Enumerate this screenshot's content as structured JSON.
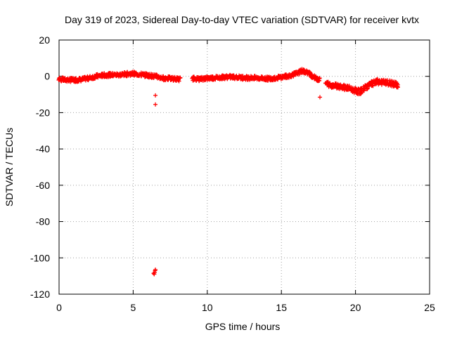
{
  "chart_data": {
    "type": "scatter",
    "title": "Day 319 of 2023, Sidereal Day-to-day VTEC variation (SDTVAR) for receiver kvtx",
    "xlabel": "GPS time / hours",
    "ylabel": "SDTVAR / TECUs",
    "xlim": [
      0,
      25
    ],
    "ylim": [
      -120,
      20
    ],
    "x_ticks": [
      0,
      5,
      10,
      15,
      20,
      25
    ],
    "y_ticks": [
      -120,
      -100,
      -80,
      -60,
      -40,
      -20,
      0,
      20
    ],
    "grid": true,
    "marker": "plus",
    "color": "#ff0000",
    "series": [
      {
        "name": "SDTVAR",
        "trend": [
          [
            0.0,
            -1.5
          ],
          [
            0.5,
            -2.0
          ],
          [
            1.0,
            -2.0
          ],
          [
            1.5,
            -1.8
          ],
          [
            2.0,
            -1.0
          ],
          [
            2.5,
            0.0
          ],
          [
            3.0,
            0.6
          ],
          [
            3.5,
            0.8
          ],
          [
            4.0,
            0.8
          ],
          [
            4.5,
            1.2
          ],
          [
            5.0,
            1.5
          ],
          [
            5.5,
            1.0
          ],
          [
            6.0,
            0.5
          ],
          [
            6.5,
            0.0
          ],
          [
            7.0,
            -1.0
          ],
          [
            7.5,
            -1.2
          ],
          [
            8.0,
            -1.5
          ],
          [
            8.2,
            -1.7
          ]
        ],
        "trend2": [
          [
            9.0,
            -1.2
          ],
          [
            9.5,
            -1.5
          ],
          [
            10.0,
            -1.0
          ],
          [
            10.5,
            -0.8
          ],
          [
            11.0,
            -0.5
          ],
          [
            11.5,
            -0.3
          ],
          [
            12.0,
            -0.5
          ],
          [
            12.5,
            -0.8
          ],
          [
            13.0,
            -0.8
          ],
          [
            13.5,
            -1.0
          ],
          [
            14.0,
            -1.3
          ],
          [
            14.5,
            -1.0
          ],
          [
            15.0,
            -0.5
          ],
          [
            15.5,
            0.3
          ],
          [
            16.0,
            1.5
          ],
          [
            16.4,
            3.0
          ],
          [
            16.8,
            2.0
          ],
          [
            17.2,
            -0.5
          ],
          [
            17.6,
            -2.0
          ]
        ],
        "trend3": [
          [
            18.0,
            -4.0
          ],
          [
            18.5,
            -5.0
          ],
          [
            19.0,
            -5.5
          ],
          [
            19.5,
            -6.5
          ],
          [
            20.0,
            -8.0
          ],
          [
            20.3,
            -8.5
          ],
          [
            20.6,
            -6.5
          ],
          [
            21.0,
            -4.5
          ],
          [
            21.5,
            -3.0
          ],
          [
            22.0,
            -3.5
          ],
          [
            22.5,
            -4.0
          ],
          [
            22.9,
            -5.0
          ]
        ],
        "outliers": [
          [
            6.5,
            -10.5
          ],
          [
            6.5,
            -15.5
          ],
          [
            17.6,
            -11.5
          ],
          [
            6.42,
            -109.0
          ],
          [
            6.45,
            -108.0
          ],
          [
            6.48,
            -107.0
          ],
          [
            6.5,
            -106.5
          ],
          [
            6.38,
            -108.5
          ]
        ]
      }
    ]
  }
}
